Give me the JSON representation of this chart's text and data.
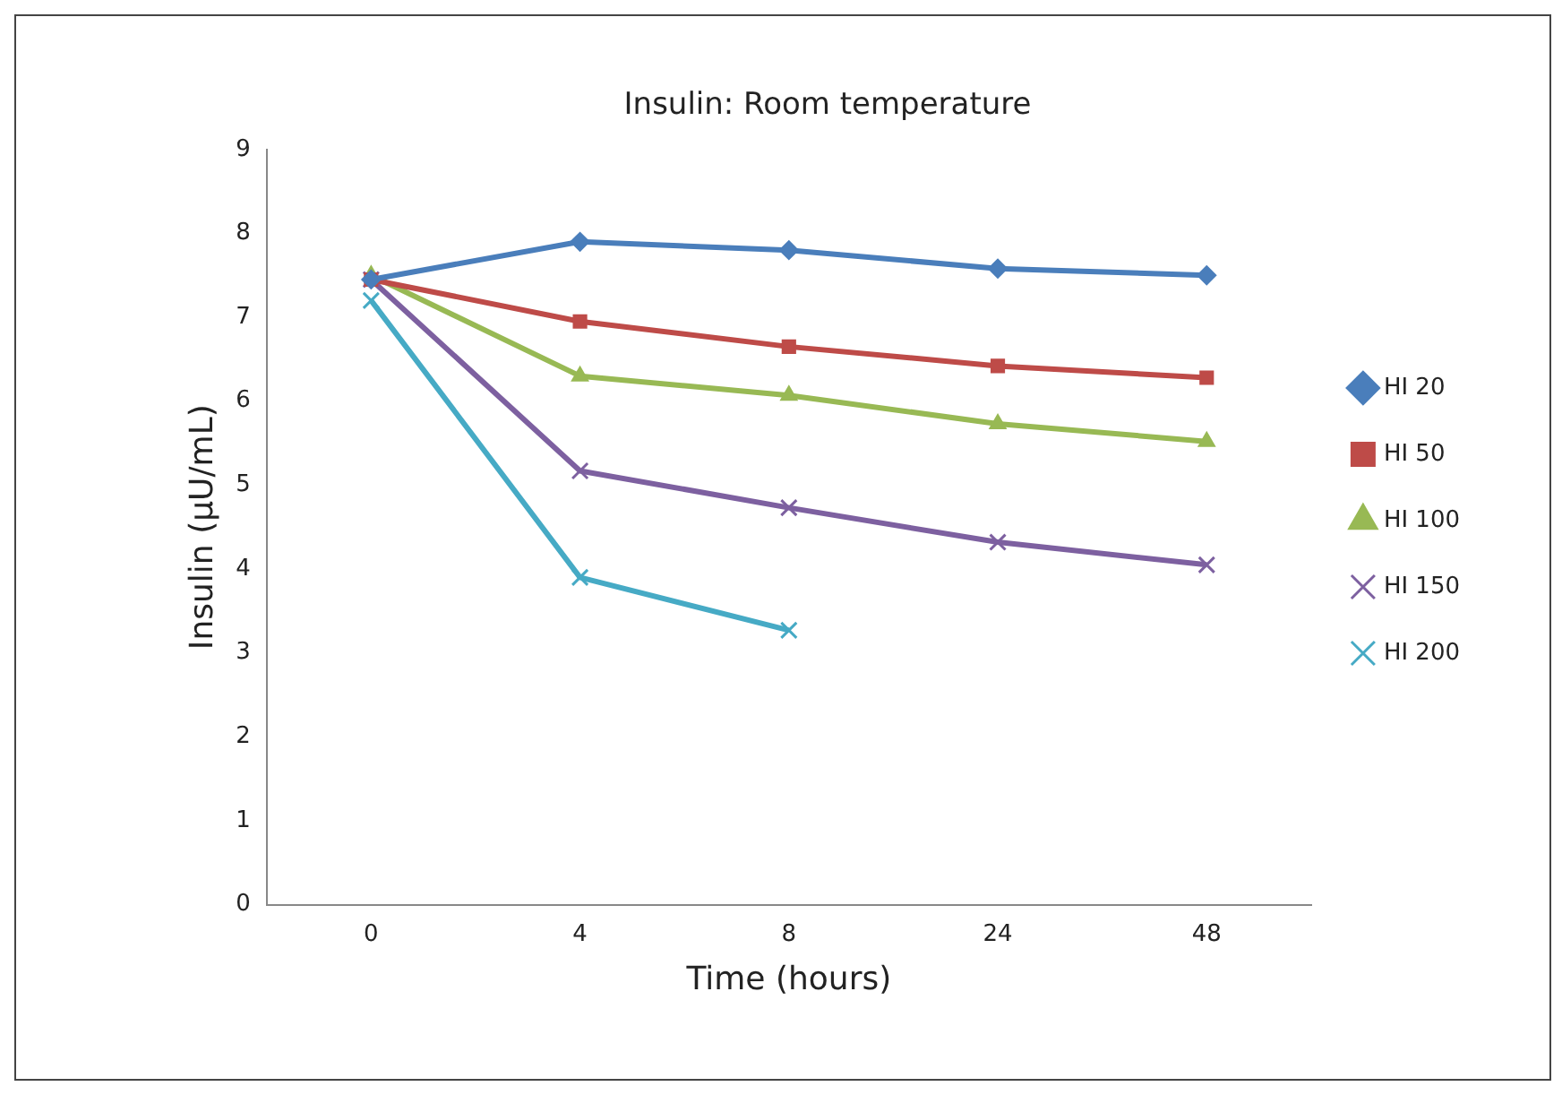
{
  "chart_data": {
    "type": "line",
    "title": "Insulin: Room temperature",
    "xlabel": "Time (hours)",
    "ylabel": "Insulin (µU/mL)",
    "categories": [
      "0",
      "4",
      "8",
      "24",
      "48"
    ],
    "series": [
      {
        "name": "HI 20",
        "color": "#4a7ebb",
        "marker": "diamond",
        "values": [
          7.45,
          7.9,
          7.8,
          7.58,
          7.5
        ]
      },
      {
        "name": "HI 50",
        "color": "#be4b48",
        "marker": "square",
        "values": [
          7.45,
          6.95,
          6.65,
          6.42,
          6.28
        ]
      },
      {
        "name": "HI 100",
        "color": "#98b954",
        "marker": "triangle",
        "values": [
          7.5,
          6.3,
          6.07,
          5.73,
          5.52
        ]
      },
      {
        "name": "HI 150",
        "color": "#7d60a0",
        "marker": "cross",
        "values": [
          7.45,
          5.17,
          4.73,
          4.32,
          4.05
        ]
      },
      {
        "name": "HI 200",
        "color": "#46aac5",
        "marker": "cross",
        "values": [
          7.2,
          3.9,
          3.27,
          null,
          null
        ]
      }
    ],
    "ylim": [
      0,
      9
    ],
    "yticks": [
      0,
      1,
      2,
      3,
      4,
      5,
      6,
      7,
      8,
      9
    ],
    "grid": false,
    "legend": "right"
  }
}
